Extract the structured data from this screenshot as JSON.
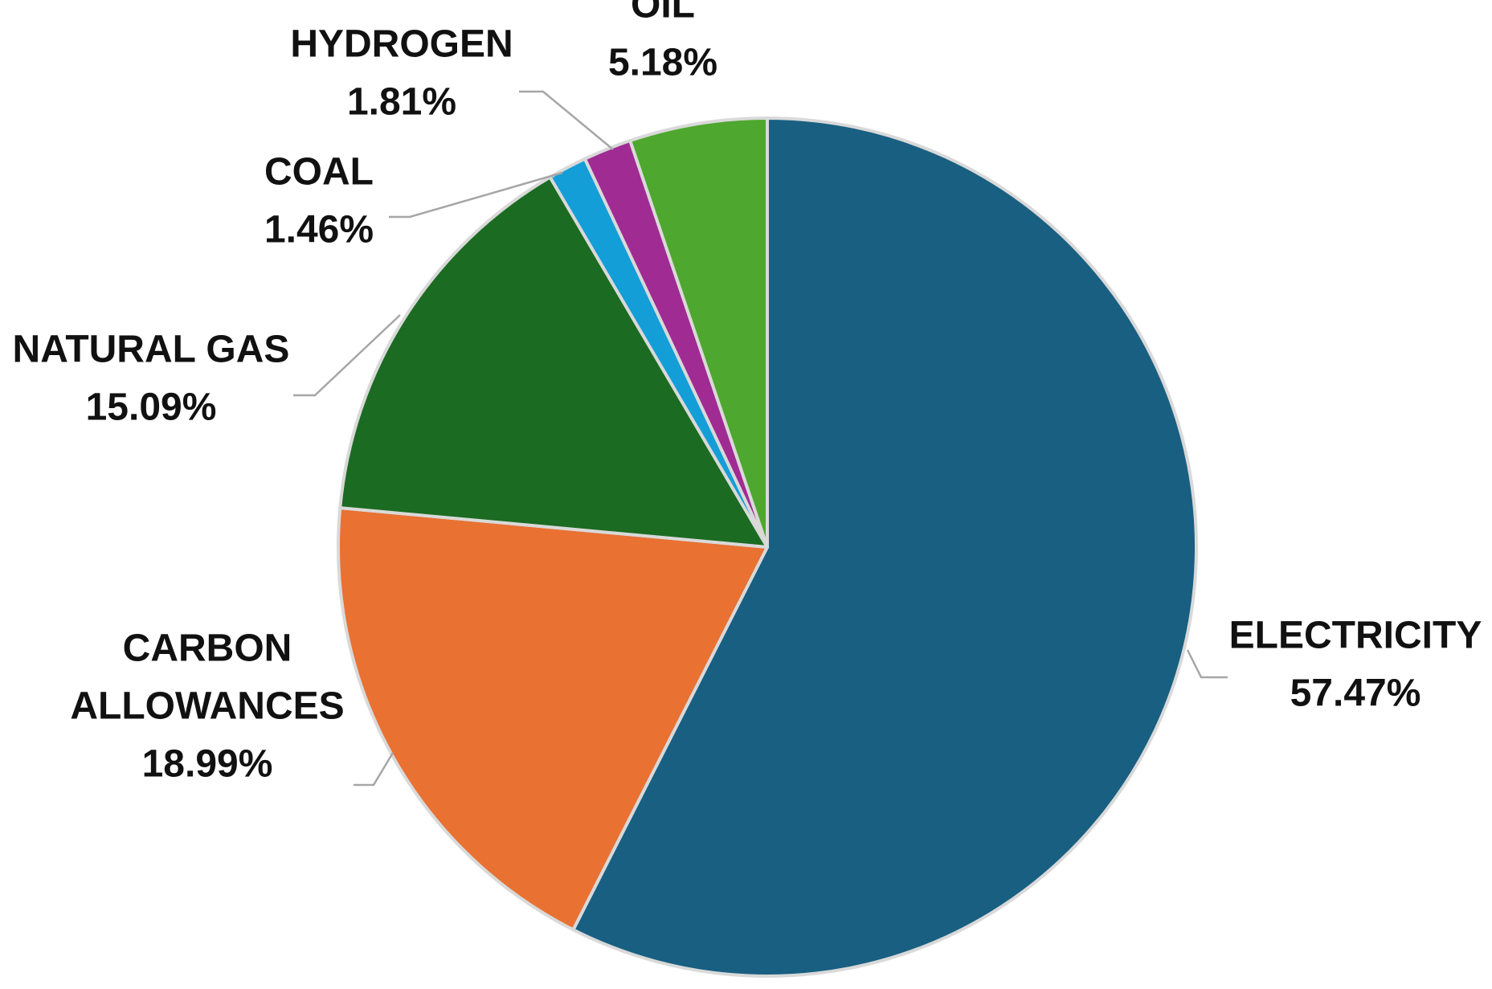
{
  "chart_data": {
    "type": "pie",
    "title": "",
    "start_angle_deg": 0,
    "direction": "clockwise",
    "legend": "none",
    "labels_position": "outside-with-leader-lines",
    "slices": [
      {
        "name": "ELECTRICITY",
        "lines": [
          "ELECTRICITY"
        ],
        "value": 57.47,
        "value_label": "57.47%",
        "color": "#185f82"
      },
      {
        "name": "CARBON ALLOWANCES",
        "lines": [
          "CARBON",
          "ALLOWANCES"
        ],
        "value": 18.99,
        "value_label": "18.99%",
        "color": "#e97132"
      },
      {
        "name": "NATURAL GAS",
        "lines": [
          "NATURAL GAS"
        ],
        "value": 15.09,
        "value_label": "15.09%",
        "color": "#1b6b22"
      },
      {
        "name": "COAL",
        "lines": [
          "COAL"
        ],
        "value": 1.46,
        "value_label": "1.46%",
        "color": "#139ed8"
      },
      {
        "name": "HYDROGEN",
        "lines": [
          "HYDROGEN"
        ],
        "value": 1.81,
        "value_label": "1.81%",
        "color": "#a02b93"
      },
      {
        "name": "OIL",
        "lines": [
          "OIL"
        ],
        "value": 5.18,
        "value_label": "5.18%",
        "color": "#4ea72e"
      }
    ]
  }
}
